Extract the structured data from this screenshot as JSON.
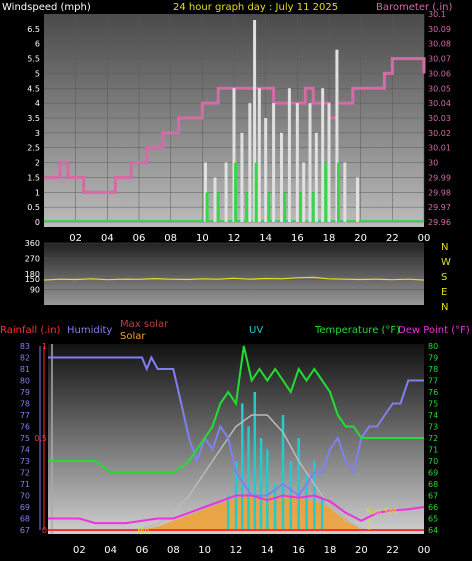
{
  "chart_data": [
    {
      "type": "line",
      "title": "24 hour graph day : July 11 2025",
      "ylabel_left": "Windspeed (mph)",
      "ylabel_right": "Barometer (.in)",
      "x_ticks": [
        "02",
        "04",
        "06",
        "08",
        "10",
        "12",
        "14",
        "16",
        "18",
        "20",
        "22",
        "00"
      ],
      "y_left_ticks": [
        "0",
        "0.5",
        "1",
        "1.5",
        "2",
        "2.5",
        "3",
        "3.5",
        "4",
        "4.5",
        "5",
        "5.5",
        "6",
        "6.5"
      ],
      "y_right_ticks": [
        "29.96",
        "29.97",
        "29.98",
        "29.99",
        "30",
        "30.01",
        "30.02",
        "30.03",
        "30.04",
        "30.05",
        "30.06",
        "30.07",
        "30.08",
        "30.09",
        "30.1"
      ],
      "ylim_left": [
        0,
        7
      ],
      "ylim_right": [
        29.96,
        30.1
      ],
      "xlim_hours": [
        0,
        24
      ],
      "series": [
        {
          "name": "Barometer (.in)",
          "color": "#d66aa7",
          "axis": "right",
          "x": [
            0,
            0.5,
            1,
            1.5,
            2,
            2.5,
            3,
            3.5,
            4,
            4.5,
            5,
            5.5,
            6,
            6.5,
            7,
            7.5,
            8,
            8.5,
            9,
            9.5,
            10,
            10.5,
            11,
            11.5,
            12,
            12.5,
            13,
            13.5,
            14,
            14.5,
            15,
            15.5,
            16,
            16.5,
            17,
            17.5,
            18,
            18.5,
            19,
            19.5,
            20,
            20.5,
            21,
            21.5,
            22,
            22.5,
            23,
            23.5,
            24
          ],
          "values": [
            29.99,
            29.99,
            30.0,
            29.99,
            29.99,
            29.98,
            29.98,
            29.98,
            29.98,
            29.99,
            29.99,
            30.0,
            30.0,
            30.01,
            30.01,
            30.02,
            30.02,
            30.03,
            30.03,
            30.03,
            30.04,
            30.04,
            30.05,
            30.05,
            30.05,
            30.05,
            30.05,
            30.05,
            30.05,
            30.04,
            30.04,
            30.04,
            30.04,
            30.05,
            30.04,
            30.04,
            30.03,
            30.04,
            30.04,
            30.05,
            30.05,
            30.05,
            30.05,
            30.06,
            30.07,
            30.07,
            30.07,
            30.07,
            30.06
          ]
        },
        {
          "name": "Windspeed (mph)",
          "color": "#e0e0e0",
          "axis": "left",
          "style": "bars",
          "x": [
            10.2,
            10.8,
            11.5,
            12.0,
            12.5,
            13.0,
            13.3,
            13.6,
            14.0,
            14.5,
            15.0,
            15.5,
            16.0,
            16.4,
            16.8,
            17.2,
            17.6,
            18.0,
            18.5,
            19.0,
            19.8
          ],
          "values": [
            2,
            1.5,
            2,
            4.5,
            3,
            4,
            6.8,
            4.5,
            3.5,
            4,
            3,
            4.5,
            4,
            2,
            4,
            3,
            4.5,
            4,
            5.8,
            2,
            1.5
          ]
        },
        {
          "name": "Wind gust",
          "color": "#35d84a",
          "axis": "left",
          "style": "bars",
          "x": [
            10.3,
            11.0,
            12.1,
            12.8,
            13.4,
            14.2,
            15.2,
            16.2,
            17.0,
            17.8,
            18.6
          ],
          "values": [
            1,
            1,
            2,
            1,
            2,
            1,
            1,
            1,
            1,
            2,
            2
          ]
        }
      ]
    },
    {
      "type": "line",
      "title": "",
      "y_ticks": [
        "90",
        "150",
        "180",
        "270",
        "360"
      ],
      "ylim": [
        0,
        360
      ],
      "direction_labels": [
        "N",
        "W",
        "S",
        "E",
        "N"
      ],
      "series": [
        {
          "name": "Wind direction",
          "color": "#e6de22",
          "x": [
            0,
            1,
            2,
            3,
            4,
            5,
            6,
            7,
            8,
            9,
            10,
            11,
            12,
            13,
            14,
            15,
            16,
            17,
            18,
            19,
            20,
            21,
            22,
            23,
            24
          ],
          "values": [
            145,
            150,
            148,
            152,
            147,
            150,
            149,
            153,
            150,
            148,
            152,
            150,
            155,
            150,
            154,
            152,
            158,
            160,
            152,
            150,
            148,
            150,
            147,
            150,
            145
          ]
        }
      ]
    },
    {
      "type": "line",
      "labels": {
        "rainfall": "Rainfall (.in)",
        "humidity": "Humidity",
        "max_solar": "Max solar",
        "solar": "Solar",
        "uv": "UV",
        "temperature": "Temperature (°F)",
        "dew_point": "Dew Point (°F)"
      },
      "annotation_mc": "Mo",
      "annotation_sunset": "Sun Set",
      "rain_ticks": [
        "0",
        "0.5",
        "1"
      ],
      "humidity_ticks": [
        "67",
        "68",
        "69",
        "70",
        "71",
        "72",
        "73",
        "74",
        "75",
        "76",
        "77",
        "78",
        "79",
        "80",
        "81",
        "82",
        "83"
      ],
      "temp_ticks": [
        "64",
        "65",
        "66",
        "67",
        "68",
        "69",
        "70",
        "71",
        "72",
        "73",
        "74",
        "75",
        "76",
        "77",
        "78",
        "79",
        "80"
      ],
      "x_ticks": [
        "02",
        "04",
        "06",
        "08",
        "10",
        "12",
        "14",
        "16",
        "18",
        "20",
        "22",
        "00"
      ],
      "ylim_humidity": [
        67,
        83
      ],
      "ylim_temp": [
        64,
        80
      ],
      "series": [
        {
          "name": "Humidity",
          "color": "#8080f0",
          "axis": "humidity",
          "x": [
            0,
            1,
            2,
            3,
            4,
            5,
            6,
            6.3,
            6.6,
            7,
            7.5,
            8,
            8.5,
            9,
            9.5,
            10,
            10.5,
            11,
            11.5,
            12,
            13,
            14,
            15,
            16,
            17,
            17.5,
            18,
            18.5,
            19,
            19.5,
            20,
            20.5,
            21,
            21.5,
            22,
            22.5,
            23,
            23.5,
            24
          ],
          "values": [
            82,
            82,
            82,
            82,
            82,
            82,
            82,
            81,
            82,
            81,
            81,
            81,
            78,
            75,
            73,
            75,
            74,
            76,
            75,
            72,
            70,
            70,
            71,
            70,
            72,
            72,
            74,
            75,
            73,
            72,
            75,
            76,
            76,
            77,
            78,
            78,
            80,
            80,
            80
          ]
        },
        {
          "name": "Temperature (°F)",
          "color": "#22dd33",
          "axis": "temp",
          "x": [
            0,
            1,
            2,
            3,
            4,
            5,
            6,
            7,
            8,
            9,
            10,
            10.5,
            11,
            11.5,
            12,
            12.5,
            13,
            13.5,
            14,
            14.5,
            15,
            15.5,
            16,
            16.5,
            17,
            17.5,
            18,
            18.5,
            19,
            19.5,
            20,
            21,
            22,
            23,
            24
          ],
          "values": [
            70,
            70,
            70,
            70,
            69,
            69,
            69,
            69,
            69,
            70,
            72,
            73,
            75,
            76,
            75,
            80,
            77,
            78,
            77,
            78,
            77,
            76,
            78,
            77,
            78,
            77,
            76,
            74,
            73,
            73,
            72,
            72,
            72,
            72,
            72
          ]
        },
        {
          "name": "Dew Point (°F)",
          "color": "#ee33dd",
          "axis": "temp",
          "x": [
            0,
            1,
            2,
            3,
            4,
            5,
            6,
            7,
            8,
            9,
            10,
            11,
            12,
            13,
            14,
            15,
            16,
            17,
            18,
            19,
            20,
            21,
            22,
            23,
            24
          ],
          "values": [
            65,
            65,
            65,
            64.6,
            64.6,
            64.6,
            64.8,
            65,
            65,
            65.5,
            66,
            66.5,
            67,
            67,
            66.6,
            67,
            66.8,
            67,
            66.5,
            65.5,
            64.8,
            65.5,
            65.7,
            65.8,
            66
          ]
        },
        {
          "name": "Max solar",
          "color": "#bbbbbb",
          "axis": "temp",
          "x": [
            5.5,
            7,
            8,
            9,
            10,
            11,
            12,
            13,
            14,
            15,
            16,
            17,
            18,
            19,
            20.3
          ],
          "values": [
            64,
            64.5,
            65.5,
            67,
            69,
            71,
            73,
            74,
            74,
            72.5,
            70,
            68,
            66,
            64.8,
            64
          ]
        },
        {
          "name": "UV",
          "color": "#22cccc",
          "axis": "temp",
          "style": "bars",
          "x": [
            11.5,
            12,
            12.4,
            12.8,
            13.2,
            13.6,
            14,
            14.5,
            15,
            15.5,
            16,
            16.5,
            17,
            17.5
          ],
          "values": [
            67,
            70,
            75,
            73,
            76,
            72,
            71,
            68,
            74,
            70,
            72,
            69,
            70,
            67
          ]
        },
        {
          "name": "Solar",
          "color": "#f0a030",
          "axis": "temp",
          "style": "area",
          "x": [
            5.5,
            7,
            8,
            9,
            10,
            11,
            12,
            13,
            14,
            15,
            16,
            17,
            18,
            19,
            20
          ],
          "values": [
            64,
            64.3,
            64.8,
            65.3,
            65.8,
            66.3,
            66.8,
            67,
            67,
            67,
            66.8,
            66.5,
            66,
            65,
            64
          ]
        }
      ]
    }
  ]
}
